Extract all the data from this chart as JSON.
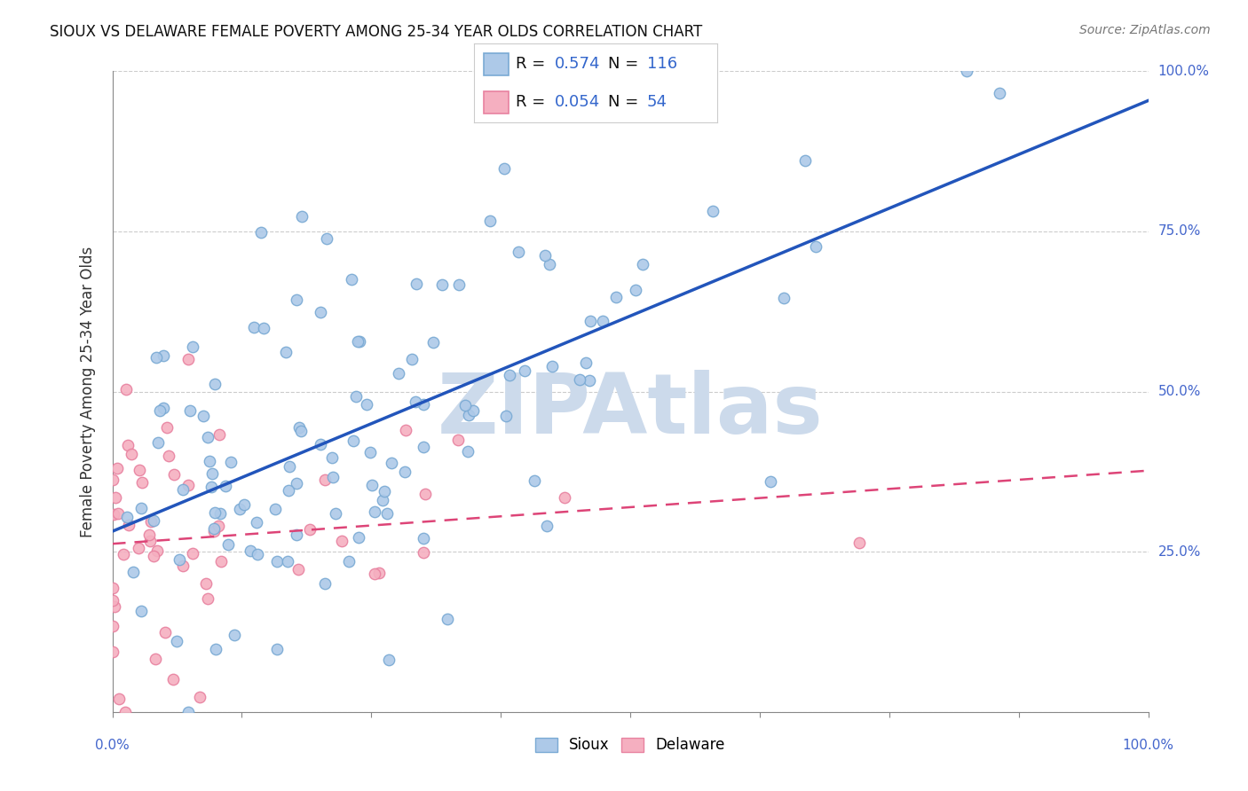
{
  "title": "SIOUX VS DELAWARE FEMALE POVERTY AMONG 25-34 YEAR OLDS CORRELATION CHART",
  "source": "Source: ZipAtlas.com",
  "ylabel": "Female Poverty Among 25-34 Year Olds",
  "sioux_R": 0.574,
  "sioux_N": 116,
  "delaware_R": 0.054,
  "delaware_N": 54,
  "sioux_color": "#adc9e8",
  "sioux_edge": "#7aaad4",
  "delaware_color": "#f5afc0",
  "delaware_edge": "#e882a0",
  "trend_sioux_color": "#2255bb",
  "trend_delaware_color": "#dd4477",
  "watermark": "ZIPAtlas",
  "watermark_color": "#ccdaeb",
  "background_color": "#ffffff",
  "grid_color": "#cccccc",
  "right_label_color": "#4466cc",
  "bottom_label_color": "#4466cc",
  "xlim": [
    0.0,
    1.0
  ],
  "ylim": [
    0.0,
    1.0
  ],
  "sioux_seed": 42,
  "delaware_seed": 7,
  "marker_size": 80
}
